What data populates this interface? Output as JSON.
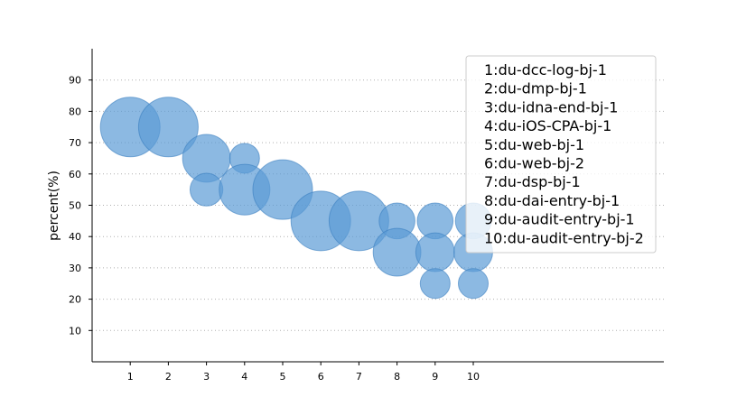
{
  "chart_data": {
    "type": "scatter",
    "variant": "bubble",
    "title": "",
    "xlabel": "",
    "ylabel": "percent(%)",
    "xlim": [
      0,
      15
    ],
    "ylim": [
      0,
      100
    ],
    "x_ticks": [
      1,
      2,
      3,
      4,
      5,
      6,
      7,
      8,
      9,
      10
    ],
    "y_ticks": [
      10,
      20,
      30,
      40,
      50,
      60,
      70,
      80,
      90
    ],
    "grid": "horizontal-dotted",
    "legend_position": "top-right",
    "color": "#5b9bd5",
    "points": [
      {
        "x": 1,
        "y": 75,
        "size": 1.0
      },
      {
        "x": 2,
        "y": 75,
        "size": 1.0
      },
      {
        "x": 3,
        "y": 65,
        "size": 0.8
      },
      {
        "x": 3,
        "y": 55,
        "size": 0.55
      },
      {
        "x": 4,
        "y": 65,
        "size": 0.5
      },
      {
        "x": 4,
        "y": 55,
        "size": 0.85
      },
      {
        "x": 5,
        "y": 55,
        "size": 1.0
      },
      {
        "x": 6,
        "y": 45,
        "size": 1.0
      },
      {
        "x": 7,
        "y": 45,
        "size": 1.0
      },
      {
        "x": 8,
        "y": 45,
        "size": 0.6
      },
      {
        "x": 8,
        "y": 35,
        "size": 0.8
      },
      {
        "x": 9,
        "y": 45,
        "size": 0.6
      },
      {
        "x": 9,
        "y": 35,
        "size": 0.65
      },
      {
        "x": 9,
        "y": 25,
        "size": 0.5
      },
      {
        "x": 10,
        "y": 45,
        "size": 0.6
      },
      {
        "x": 10,
        "y": 35,
        "size": 0.65
      },
      {
        "x": 10,
        "y": 25,
        "size": 0.5
      }
    ],
    "legend_entries": [
      "1:du-dcc-log-bj-1",
      "2:du-dmp-bj-1",
      "3:du-idna-end-bj-1",
      "4:du-iOS-CPA-bj-1",
      "5:du-web-bj-1",
      "6:du-web-bj-2",
      "7:du-dsp-bj-1",
      "8:du-dai-entry-bj-1",
      "9:du-audit-entry-bj-1",
      "10:du-audit-entry-bj-2"
    ]
  }
}
